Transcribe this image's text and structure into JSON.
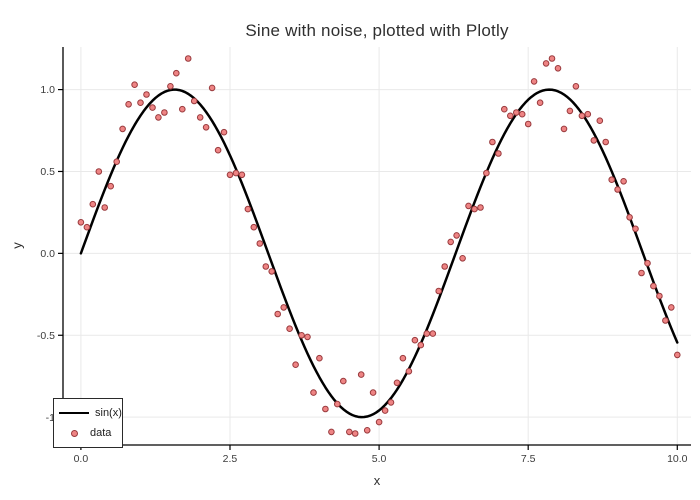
{
  "figure": {
    "background": "#ffffff"
  },
  "chart_data": {
    "type": "scatter",
    "title": "Sine with noise, plotted with Plotly",
    "xlabel": "x",
    "ylabel": "y",
    "xlim": [
      -0.3,
      10.23
    ],
    "ylim": [
      -1.17,
      1.26
    ],
    "grid": true,
    "grid_color": "#e9e9e9",
    "axis_color": "#000000",
    "tick_label_color": "#3c3c3c",
    "x_ticks": {
      "values": [
        0,
        2.5,
        5,
        7.5,
        10
      ],
      "labels": [
        "0.0",
        "2.5",
        "5.0",
        "7.5",
        "10.0"
      ]
    },
    "y_ticks": {
      "values": [
        1,
        0.5,
        0,
        -0.5,
        -1
      ],
      "labels": [
        "1.0",
        "0.5",
        "0.0",
        "-0.5",
        "-1"
      ]
    },
    "legend": {
      "position": "bottom-left",
      "entries": [
        {
          "label": "sin(x)",
          "type": "line",
          "color": "#000000"
        },
        {
          "label": "data",
          "type": "marker",
          "fill": "#ee8484",
          "stroke": "#993a3d"
        }
      ]
    },
    "series": [
      {
        "name": "sin(x)",
        "type": "line",
        "color": "#000000",
        "line_width": 2.5,
        "function": "sin",
        "x_range": [
          0,
          10
        ]
      },
      {
        "name": "data",
        "type": "scatter",
        "marker_fill": "#ee8484",
        "marker_stroke": "#993a3d",
        "marker_radius": 2.8,
        "points": [
          [
            0.0,
            0.19
          ],
          [
            0.1,
            0.16
          ],
          [
            0.2,
            0.3
          ],
          [
            0.3,
            0.5
          ],
          [
            0.4,
            0.28
          ],
          [
            0.5,
            0.41
          ],
          [
            0.6,
            0.56
          ],
          [
            0.7,
            0.76
          ],
          [
            0.8,
            0.91
          ],
          [
            0.9,
            1.03
          ],
          [
            1.0,
            0.92
          ],
          [
            1.1,
            0.97
          ],
          [
            1.2,
            0.89
          ],
          [
            1.3,
            0.83
          ],
          [
            1.4,
            0.86
          ],
          [
            1.5,
            1.02
          ],
          [
            1.6,
            1.1
          ],
          [
            1.7,
            0.88
          ],
          [
            1.8,
            1.19
          ],
          [
            1.9,
            0.93
          ],
          [
            2.0,
            0.83
          ],
          [
            2.1,
            0.77
          ],
          [
            2.2,
            1.01
          ],
          [
            2.3,
            0.63
          ],
          [
            2.4,
            0.74
          ],
          [
            2.5,
            0.48
          ],
          [
            2.6,
            0.49
          ],
          [
            2.7,
            0.48
          ],
          [
            2.8,
            0.27
          ],
          [
            2.9,
            0.16
          ],
          [
            3.0,
            0.06
          ],
          [
            3.1,
            -0.08
          ],
          [
            3.2,
            -0.11
          ],
          [
            3.3,
            -0.37
          ],
          [
            3.4,
            -0.33
          ],
          [
            3.5,
            -0.46
          ],
          [
            3.6,
            -0.68
          ],
          [
            3.7,
            -0.5
          ],
          [
            3.8,
            -0.51
          ],
          [
            3.9,
            -0.85
          ],
          [
            4.0,
            -0.64
          ],
          [
            4.1,
            -0.95
          ],
          [
            4.2,
            -1.09
          ],
          [
            4.3,
            -0.92
          ],
          [
            4.4,
            -0.78
          ],
          [
            4.5,
            -1.09
          ],
          [
            4.6,
            -1.1
          ],
          [
            4.7,
            -0.74
          ],
          [
            4.8,
            -1.08
          ],
          [
            4.9,
            -0.85
          ],
          [
            5.0,
            -1.03
          ],
          [
            5.1,
            -0.96
          ],
          [
            5.2,
            -0.91
          ],
          [
            5.3,
            -0.79
          ],
          [
            5.4,
            -0.64
          ],
          [
            5.5,
            -0.72
          ],
          [
            5.6,
            -0.53
          ],
          [
            5.7,
            -0.56
          ],
          [
            5.8,
            -0.49
          ],
          [
            5.9,
            -0.49
          ],
          [
            6.0,
            -0.23
          ],
          [
            6.1,
            -0.08
          ],
          [
            6.2,
            0.07
          ],
          [
            6.3,
            0.11
          ],
          [
            6.4,
            -0.03
          ],
          [
            6.5,
            0.29
          ],
          [
            6.6,
            0.27
          ],
          [
            6.7,
            0.28
          ],
          [
            6.8,
            0.49
          ],
          [
            6.9,
            0.68
          ],
          [
            7.0,
            0.61
          ],
          [
            7.1,
            0.88
          ],
          [
            7.2,
            0.84
          ],
          [
            7.3,
            0.86
          ],
          [
            7.4,
            0.85
          ],
          [
            7.5,
            0.79
          ],
          [
            7.6,
            1.05
          ],
          [
            7.7,
            0.92
          ],
          [
            7.8,
            1.16
          ],
          [
            7.9,
            1.19
          ],
          [
            8.0,
            1.13
          ],
          [
            8.1,
            0.76
          ],
          [
            8.2,
            0.87
          ],
          [
            8.3,
            1.02
          ],
          [
            8.4,
            0.84
          ],
          [
            8.5,
            0.85
          ],
          [
            8.6,
            0.69
          ],
          [
            8.7,
            0.81
          ],
          [
            8.8,
            0.68
          ],
          [
            8.9,
            0.45
          ],
          [
            9.0,
            0.39
          ],
          [
            9.1,
            0.44
          ],
          [
            9.2,
            0.22
          ],
          [
            9.3,
            0.15
          ],
          [
            9.4,
            -0.12
          ],
          [
            9.5,
            -0.06
          ],
          [
            9.6,
            -0.2
          ],
          [
            9.7,
            -0.26
          ],
          [
            9.8,
            -0.41
          ],
          [
            9.9,
            -0.33
          ],
          [
            10.0,
            -0.62
          ]
        ]
      }
    ]
  }
}
